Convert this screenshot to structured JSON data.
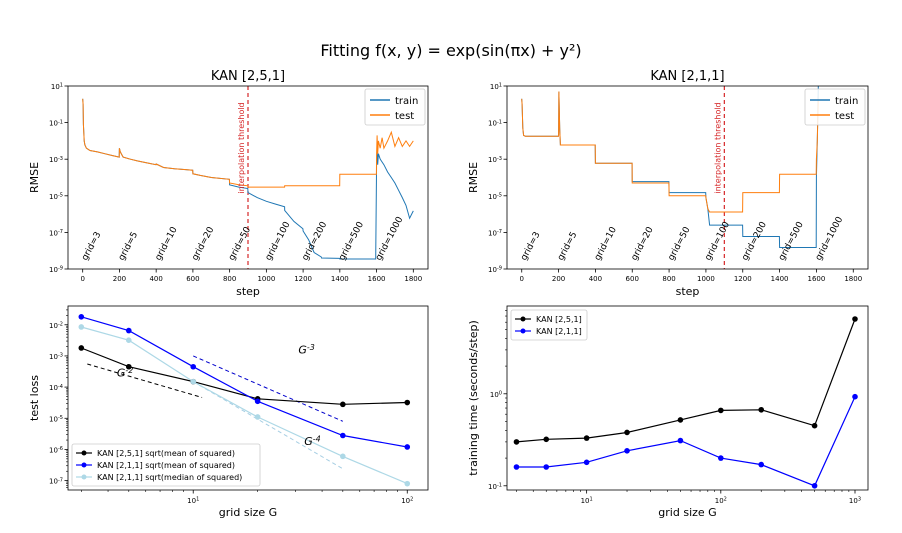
{
  "figure": {
    "suptitle": "Fitting f(x, y) = exp(sin(πx) + y²)"
  },
  "chart_data": [
    {
      "type": "line",
      "title": "KAN [2,5,1]",
      "xlabel": "step",
      "ylabel": "RMSE",
      "xlim": [
        -80,
        1880
      ],
      "xticks": [
        0,
        200,
        400,
        600,
        800,
        1000,
        1200,
        1400,
        1600,
        1800
      ],
      "yscale": "log",
      "ylim": [
        1e-09,
        10
      ],
      "yticks": [
        "10^{-9}",
        "10^{-7}",
        "10^{-5}",
        "10^{-3}",
        "10^{-1}",
        "10^{1}"
      ],
      "legend": {
        "position": "top-right",
        "entries": [
          "train",
          "test"
        ]
      },
      "threshold": {
        "x": 900,
        "label": "interpolation threshold",
        "color": "#d62728"
      },
      "grid_labels": [
        "grid=3",
        "grid=5",
        "grid=10",
        "grid=20",
        "grid=50",
        "grid=100",
        "grid=200",
        "grid=500",
        "grid=1000"
      ],
      "series": [
        {
          "name": "train",
          "color": "#1f77b4",
          "x": [
            0,
            2,
            4,
            8,
            12,
            20,
            40,
            80,
            120,
            160,
            199,
            200,
            205,
            220,
            260,
            300,
            360,
            399,
            400,
            440,
            500,
            560,
            599,
            600,
            640,
            700,
            799,
            800,
            850,
            899,
            900,
            950,
            1000,
            1050,
            1099,
            1100,
            1150,
            1199,
            1200,
            1230,
            1260,
            1299,
            1300,
            1399,
            1400,
            1480,
            1550,
            1595,
            1600,
            1603,
            1606,
            1610,
            1620,
            1640,
            1660,
            1680,
            1700,
            1720,
            1740,
            1760,
            1780,
            1800
          ],
          "y": [
            2,
            1,
            0.08,
            0.01,
            0.006,
            0.004,
            0.003,
            0.0025,
            0.002,
            0.0016,
            0.0013,
            0.004,
            0.0025,
            0.0013,
            0.001,
            0.0008,
            0.0006,
            0.0005,
            0.00055,
            0.00035,
            0.0003,
            0.00027,
            0.00025,
            0.00016,
            0.00013,
            0.0001,
            8e-05,
            4e-05,
            3e-05,
            2.5e-05,
            1.5e-05,
            8e-06,
            5e-06,
            3.5e-06,
            2.5e-06,
            1.6e-06,
            4e-07,
            1.6e-07,
            1.2e-07,
            4e-08,
            8e-09,
            4.5e-09,
            4e-09,
            3.8e-09,
            3.5e-09,
            3.5e-09,
            3.5e-09,
            3.5e-09,
            0.0008,
            0.003,
            0.0005,
            0.002,
            0.001,
            0.0005,
            0.0002,
            0.0001,
            5e-05,
            2e-05,
            8e-06,
            3e-06,
            6e-07,
            1.5e-06
          ]
        },
        {
          "name": "test",
          "color": "#ff7f0e",
          "x": [
            0,
            2,
            4,
            8,
            12,
            20,
            40,
            80,
            120,
            160,
            199,
            200,
            205,
            220,
            260,
            300,
            360,
            399,
            400,
            440,
            500,
            560,
            599,
            600,
            640,
            700,
            799,
            800,
            850,
            899,
            900,
            950,
            1000,
            1099,
            1100,
            1200,
            1300,
            1399,
            1400,
            1500,
            1599,
            1600,
            1603,
            1606,
            1610,
            1620,
            1630,
            1640,
            1660,
            1680,
            1700,
            1720,
            1740,
            1760,
            1780,
            1800
          ],
          "y": [
            2,
            1,
            0.08,
            0.01,
            0.006,
            0.004,
            0.003,
            0.0025,
            0.002,
            0.0016,
            0.0013,
            0.004,
            0.0025,
            0.0013,
            0.001,
            0.0008,
            0.0006,
            0.0005,
            0.00055,
            0.00035,
            0.0003,
            0.00027,
            0.00025,
            0.00016,
            0.00013,
            0.0001,
            8e-05,
            5e-05,
            4e-05,
            3.5e-05,
            3e-05,
            3e-05,
            3e-05,
            3e-05,
            3.5e-05,
            3.5e-05,
            3.5e-05,
            3.5e-05,
            0.00015,
            0.00015,
            0.00015,
            0.002,
            0.02,
            0.002,
            0.01,
            0.004,
            0.015,
            0.004,
            0.01,
            0.03,
            0.005,
            0.015,
            0.005,
            0.01,
            0.005,
            0.01
          ]
        }
      ]
    },
    {
      "type": "line",
      "title": "KAN [2,1,1]",
      "xlabel": "step",
      "ylabel": "RMSE",
      "xlim": [
        -80,
        1880
      ],
      "xticks": [
        0,
        200,
        400,
        600,
        800,
        1000,
        1200,
        1400,
        1600,
        1800
      ],
      "yscale": "log",
      "ylim": [
        1e-09,
        10
      ],
      "yticks": [
        "10^{-9}",
        "10^{-7}",
        "10^{-5}",
        "10^{-3}",
        "10^{-1}",
        "10^{1}"
      ],
      "legend": {
        "position": "top-right",
        "entries": [
          "train",
          "test"
        ]
      },
      "threshold": {
        "x": 1100,
        "label": "interpolation threshold",
        "color": "#d62728"
      },
      "grid_labels": [
        "grid=3",
        "grid=5",
        "grid=10",
        "grid=20",
        "grid=50",
        "grid=100",
        "grid=200",
        "grid=500",
        "grid=1000"
      ],
      "series": [
        {
          "name": "train",
          "color": "#1f77b4",
          "x": [
            0,
            2,
            6,
            10,
            20,
            199,
            200,
            202,
            206,
            210,
            399,
            400,
            405,
            599,
            600,
            605,
            799,
            800,
            805,
            999,
            1000,
            1010,
            1020,
            1199,
            1200,
            1210,
            1399,
            1400,
            1410,
            1599,
            1600,
            1605,
            1610
          ],
          "y": [
            2,
            1,
            0.05,
            0.02,
            0.018,
            0.018,
            0.02,
            5,
            0.05,
            0.006,
            0.006,
            0.0006,
            0.0006,
            0.0006,
            6e-05,
            6e-05,
            6e-05,
            1.5e-05,
            1.5e-05,
            1.5e-05,
            8e-06,
            2e-06,
            2.5e-07,
            2.5e-07,
            6e-08,
            6e-08,
            6e-08,
            1.5e-08,
            1.5e-08,
            1.5e-08,
            0.0001,
            0.01,
            10
          ]
        },
        {
          "name": "test",
          "color": "#ff7f0e",
          "x": [
            0,
            2,
            6,
            10,
            20,
            199,
            200,
            202,
            206,
            210,
            399,
            400,
            405,
            599,
            600,
            605,
            799,
            800,
            805,
            999,
            1000,
            1010,
            1020,
            1199,
            1200,
            1210,
            1399,
            1400,
            1410,
            1599,
            1600,
            1605,
            1610
          ],
          "y": [
            2,
            1,
            0.05,
            0.02,
            0.018,
            0.018,
            0.02,
            5,
            0.05,
            0.006,
            0.006,
            0.0006,
            0.0006,
            0.0006,
            5e-05,
            5e-05,
            5e-05,
            1e-05,
            1e-05,
            1e-05,
            8e-06,
            2e-06,
            1.3e-06,
            1.3e-06,
            1.5e-05,
            1.5e-05,
            1.5e-05,
            0.00015,
            0.00015,
            0.00015,
            0.001,
            0.01,
            2
          ]
        }
      ]
    },
    {
      "type": "line",
      "xlabel": "grid size G",
      "ylabel": "test loss",
      "xscale": "log",
      "xlim": [
        2.6,
        125
      ],
      "xticks": [
        "10^{1}",
        "10^{2}"
      ],
      "yscale": "log",
      "ylim": [
        5e-08,
        0.04
      ],
      "yticks": [
        "10^{-7}",
        "10^{-6}",
        "10^{-5}",
        "10^{-4}",
        "10^{-3}",
        "10^{-2}"
      ],
      "legend": {
        "position": "bottom-left"
      },
      "annotations": [
        {
          "text": "G^{-2}",
          "color": "#000000",
          "x": 4.4,
          "y": 0.00022
        },
        {
          "text": "G^{-3}",
          "color": "#0000cc",
          "x": 31,
          "y": 0.0012
        },
        {
          "text": "G^{-4}",
          "color": "#a6cee3",
          "x": 33,
          "y": 1.4e-06
        }
      ],
      "reference_lines": [
        {
          "name": "G^-2",
          "color": "#000000",
          "x": [
            3.2,
            11
          ],
          "y": [
            0.00055,
            4.65e-05
          ]
        },
        {
          "name": "G^-3",
          "color": "#0000cc",
          "x": [
            10,
            50
          ],
          "y": [
            0.001,
            8e-06
          ]
        },
        {
          "name": "G^-4",
          "color": "#a6cee3",
          "x": [
            10,
            50
          ],
          "y": [
            0.00015,
            2.4e-07
          ]
        }
      ],
      "series": [
        {
          "name": "KAN [2,5,1] sqrt(mean of squared)",
          "color": "#000000",
          "x": [
            3,
            5,
            10,
            20,
            50,
            100
          ],
          "y": [
            0.0018,
            0.00045,
            0.00015,
            4.2e-05,
            2.8e-05,
            3.2e-05
          ]
        },
        {
          "name": "KAN [2,1,1] sqrt(mean of squared)",
          "color": "#0000ff",
          "x": [
            3,
            5,
            10,
            20,
            50,
            100
          ],
          "y": [
            0.018,
            0.0065,
            0.00045,
            3.5e-05,
            2.8e-06,
            1.2e-06
          ]
        },
        {
          "name": "KAN [2,1,1] sqrt(median of squared)",
          "color": "#add8e6",
          "x": [
            3,
            5,
            10,
            20,
            50,
            100
          ],
          "y": [
            0.0085,
            0.0032,
            0.00015,
            1.1e-05,
            6e-07,
            8e-08
          ]
        }
      ]
    },
    {
      "type": "line",
      "xlabel": "grid size G",
      "ylabel": "training time (seconds/step)",
      "xscale": "log",
      "xlim": [
        2.55,
        1250
      ],
      "xticks": [
        "10^{1}",
        "10^{2}",
        "10^{3}"
      ],
      "yscale": "log",
      "ylim": [
        0.09,
        9
      ],
      "yticks": [
        "10^{-1}",
        "10^{0}"
      ],
      "legend": {
        "position": "top-left"
      },
      "series": [
        {
          "name": "KAN [2,5,1]",
          "color": "#000000",
          "x": [
            3,
            5,
            10,
            20,
            50,
            100,
            200,
            500,
            1000
          ],
          "y": [
            0.3,
            0.32,
            0.33,
            0.38,
            0.52,
            0.66,
            0.67,
            0.45,
            6.5
          ]
        },
        {
          "name": "KAN [2,1,1]",
          "color": "#0000ff",
          "x": [
            3,
            5,
            10,
            20,
            50,
            100,
            200,
            500,
            1000
          ],
          "y": [
            0.16,
            0.16,
            0.18,
            0.24,
            0.31,
            0.2,
            0.17,
            0.1,
            0.93
          ]
        }
      ]
    }
  ]
}
